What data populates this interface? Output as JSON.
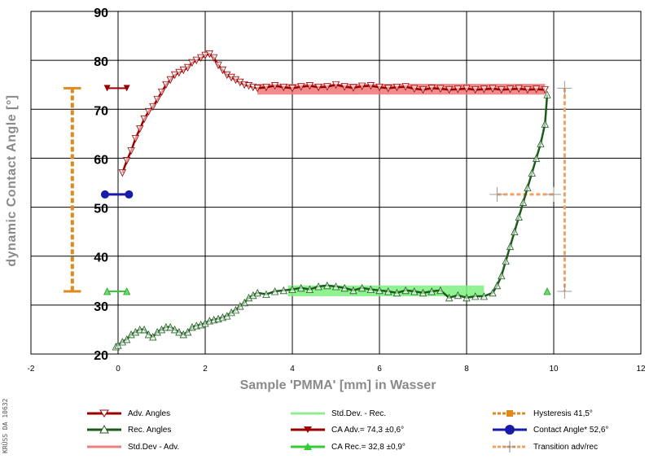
{
  "chart_data": {
    "type": "line",
    "xlabel": "Sample 'PMMA' [mm] in Wasser",
    "ylabel": "dynamic Contact Angle [°]",
    "xlim": [
      -2,
      12
    ],
    "ylim": [
      20,
      90
    ],
    "xticks": [
      "-2",
      "0",
      "2",
      "4",
      "6",
      "8",
      "10",
      "12"
    ],
    "yticks": [
      "20",
      "30",
      "40",
      "50",
      "60",
      "70",
      "80",
      "90"
    ],
    "grid": true,
    "legend_position": "bottom",
    "series": [
      {
        "name": "Adv. Angles",
        "color": "#9b0000",
        "x": [
          0.1,
          0.2,
          0.3,
          0.4,
          0.5,
          0.6,
          0.7,
          0.8,
          0.9,
          1.0,
          1.1,
          1.2,
          1.3,
          1.4,
          1.5,
          1.6,
          1.7,
          1.8,
          1.9,
          2.0,
          2.1,
          2.2,
          2.3,
          2.4,
          2.5,
          2.6,
          2.7,
          2.8,
          2.9,
          3.0,
          3.1,
          3.2,
          3.4,
          3.6,
          3.8,
          4.0,
          4.2,
          4.4,
          4.6,
          4.8,
          5.0,
          5.2,
          5.4,
          5.6,
          5.8,
          6.0,
          6.2,
          6.4,
          6.6,
          6.8,
          7.0,
          7.2,
          7.4,
          7.6,
          7.8,
          8.0,
          8.2,
          8.4,
          8.6,
          8.8,
          9.0,
          9.2,
          9.4,
          9.6,
          9.8
        ],
        "y": [
          57.0,
          59.5,
          61.5,
          64.0,
          66.0,
          68.0,
          69.5,
          70.5,
          72.0,
          73.5,
          75.0,
          76.0,
          77.0,
          77.5,
          78.0,
          78.5,
          79.5,
          80.0,
          80.5,
          81.0,
          81.3,
          80.5,
          79.0,
          78.0,
          77.0,
          76.5,
          76.0,
          75.5,
          75.0,
          74.8,
          74.5,
          74.3,
          74.5,
          74.8,
          74.5,
          74.3,
          74.6,
          74.8,
          74.5,
          74.6,
          75.0,
          74.6,
          74.4,
          74.7,
          74.8,
          74.5,
          74.3,
          74.5,
          74.6,
          74.2,
          74.0,
          74.3,
          74.2,
          74.0,
          74.1,
          74.2,
          74.0,
          74.1,
          74.2,
          74.0,
          74.1,
          74.2,
          74.0,
          74.1,
          74.0
        ]
      },
      {
        "name": "Rec. Angles",
        "color": "#1a5c1a",
        "x": [
          -0.05,
          0.0,
          0.1,
          0.2,
          0.3,
          0.4,
          0.5,
          0.6,
          0.7,
          0.8,
          0.9,
          1.0,
          1.1,
          1.2,
          1.3,
          1.4,
          1.5,
          1.6,
          1.7,
          1.8,
          1.9,
          2.0,
          2.1,
          2.2,
          2.3,
          2.4,
          2.5,
          2.6,
          2.7,
          2.8,
          2.9,
          3.0,
          3.1,
          3.2,
          3.4,
          3.6,
          3.8,
          4.0,
          4.2,
          4.4,
          4.6,
          4.8,
          5.0,
          5.2,
          5.4,
          5.6,
          5.8,
          6.0,
          6.2,
          6.4,
          6.6,
          6.8,
          7.0,
          7.2,
          7.4,
          7.6,
          7.8,
          8.0,
          8.2,
          8.4,
          8.6,
          8.7,
          8.8,
          8.9,
          9.0,
          9.1,
          9.2,
          9.3,
          9.4,
          9.5,
          9.6,
          9.7,
          9.8,
          9.85
        ],
        "y": [
          21.5,
          21.8,
          22.5,
          23.0,
          24.0,
          24.5,
          25.0,
          25.0,
          24.0,
          23.5,
          24.5,
          25.0,
          25.5,
          25.5,
          25.0,
          24.5,
          24.0,
          24.5,
          25.5,
          25.8,
          26.0,
          26.3,
          26.8,
          27.0,
          27.2,
          27.5,
          27.8,
          28.5,
          29.0,
          29.8,
          30.5,
          31.5,
          32.0,
          32.5,
          32.2,
          32.8,
          33.0,
          33.2,
          33.5,
          33.2,
          33.8,
          34.0,
          33.8,
          33.5,
          33.0,
          33.5,
          33.2,
          33.0,
          32.8,
          32.5,
          33.0,
          32.8,
          32.5,
          32.8,
          33.0,
          31.5,
          32.0,
          31.5,
          31.8,
          31.8,
          32.5,
          34.0,
          36.0,
          39.0,
          42.0,
          45.0,
          48.0,
          51.0,
          54.0,
          57.0,
          60.0,
          63.0,
          67.0,
          73.0
        ]
      },
      {
        "name": "Std.Dev - Adv.",
        "color": "#f08080"
      },
      {
        "name": "Std.Dev. - Rec.",
        "color": "#90ee90"
      },
      {
        "name": "CA Adv.= 74,3 ±0,6°",
        "color": "#9b0000"
      },
      {
        "name": "CA Rec.= 32,8 ±0,9°",
        "color": "#33cc33"
      },
      {
        "name": "Hysteresis 41,5°",
        "color": "#e08a1e"
      },
      {
        "name": "Contact Angle* 52,6°",
        "color": "#1a1aaa"
      },
      {
        "name": "Transition adv/rec",
        "color": "#f0a060"
      }
    ]
  },
  "legend": {
    "adv_angles": "Adv. Angles",
    "rec_angles": "Rec. Angles",
    "std_adv": "Std.Dev - Adv.",
    "std_rec": "Std.Dev. - Rec.",
    "ca_adv": "CA Adv.= 74,3 ±0,6°",
    "ca_rec": "CA Rec.= 32,8 ±0,9°",
    "hysteresis": "Hysteresis 41,5°",
    "contact_angle": "Contact Angle* 52,6°",
    "transition": "Transition adv/rec"
  },
  "watermark": "KRÜSS DA 10632"
}
